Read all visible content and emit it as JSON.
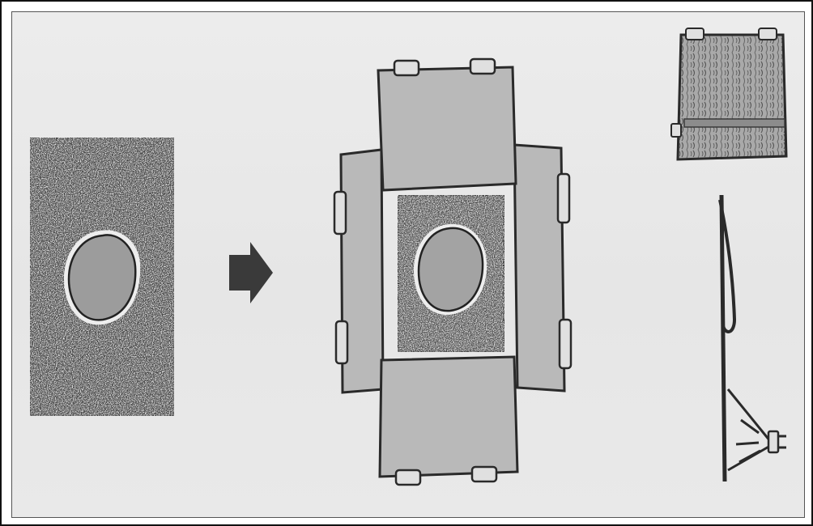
{
  "colors": {
    "paper": "#e8e8e8",
    "outline": "#2a2a2a",
    "patch_fill": "#b7b7b7",
    "speckle_base": "#4a4a4a",
    "damage_fill": "#9a9a9a",
    "grain_fill": "#a5a5a5",
    "arrow": "#3a3a3a"
  },
  "icons": {
    "step_arrow": "right-arrow-icon",
    "spray": "spray-nozzle-icon"
  }
}
